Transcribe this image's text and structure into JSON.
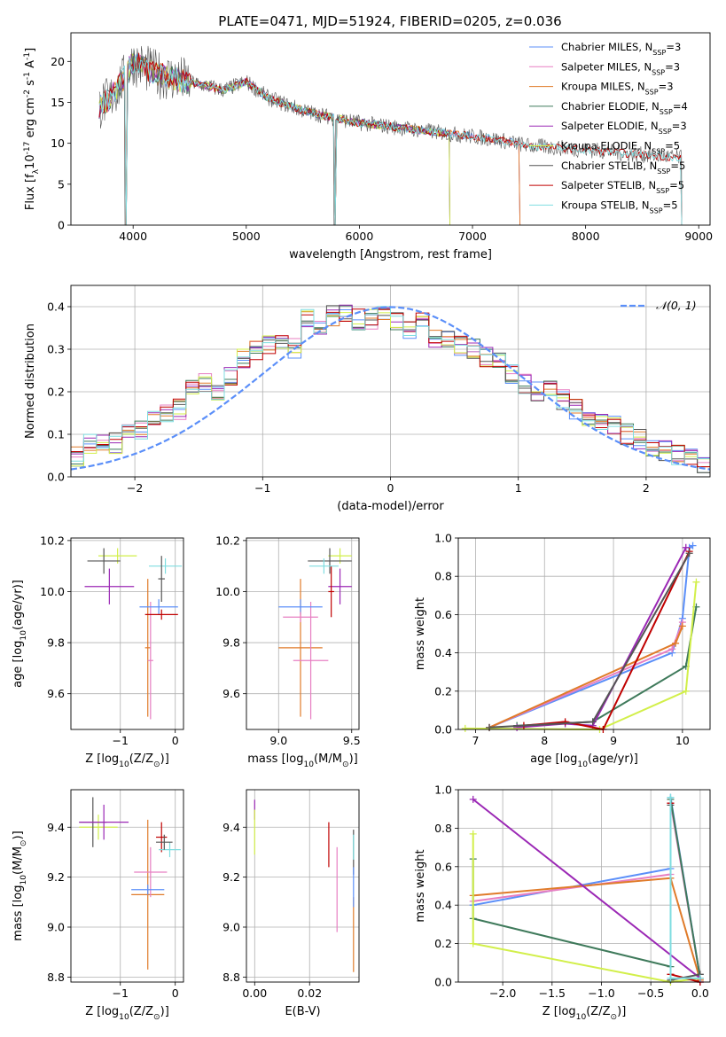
{
  "chart_data": [
    {
      "id": "spectrum",
      "type": "line",
      "title": "PLATE=0471, MJD=51924, FIBERID=0205, z=0.036",
      "xlabel": "wavelength [Angstrom, rest frame]",
      "ylabel": "Flux [f$_\\lambda$10$^{-17}$ erg cm$^{-2}$ s$^{-1}$ A$^{-1}$]",
      "xlim": [
        3450,
        9100
      ],
      "ylim": [
        0,
        23.5
      ],
      "xticks": [
        4000,
        5000,
        6000,
        7000,
        8000,
        9000
      ],
      "yticks": [
        0,
        5,
        10,
        15,
        20
      ],
      "legend_position": "top-right",
      "data": {
        "x": [
          3700,
          3800,
          3900,
          4000,
          4200,
          4500,
          4800,
          5000,
          5200,
          5500,
          5800,
          6000,
          6300,
          6600,
          6900,
          7200,
          7500,
          7800,
          8100,
          8400,
          8700,
          8850
        ],
        "y": [
          14.5,
          15.5,
          17.5,
          20,
          18.5,
          17.5,
          16.5,
          17.5,
          15.5,
          14,
          13,
          12.5,
          12,
          11.5,
          11,
          10.5,
          9.7,
          9.4,
          9.1,
          8.7,
          8.4,
          8.2
        ]
      },
      "series": [
        {
          "name": "Chabrier MILES, N$_{SSP}$=3",
          "color": "#5b8ff9",
          "end": 7420
        },
        {
          "name": "Salpeter MILES, N$_{SSP}$=3",
          "color": "#e77fc2",
          "end": 7420
        },
        {
          "name": "Kroupa MILES, N$_{SSP}$=3",
          "color": "#e07b2a",
          "end": 7420
        },
        {
          "name": "Chabrier ELODIE, N$_{SSP}$=4",
          "color": "#3f7a5b",
          "end": 6800
        },
        {
          "name": "Salpeter ELODIE, N$_{SSP}$=3",
          "color": "#9b28b5",
          "end": 6800
        },
        {
          "name": "Kroupa ELODIE, N$_{SSP}$=5",
          "color": "#d2ef4a",
          "end": 6800
        },
        {
          "name": "Chabrier STELIB, N$_{SSP}$=5",
          "color": "#555555",
          "end": 8850
        },
        {
          "name": "Salpeter STELIB, N$_{SSP}$=5",
          "color": "#c00000",
          "end": 8850
        },
        {
          "name": "Kroupa STELIB, N$_{SSP}$=5",
          "color": "#7fdde0",
          "end": 8850
        }
      ]
    },
    {
      "id": "residuals",
      "type": "bar",
      "xlabel": "(data-model)/error",
      "ylabel": "Normed distribution",
      "xlim": [
        -2.5,
        2.5
      ],
      "ylim": [
        0,
        0.45
      ],
      "xticks": [
        -2,
        -1,
        0,
        1,
        2
      ],
      "yticks": [
        0.0,
        0.1,
        0.2,
        0.3,
        0.4
      ],
      "legend": "$\\mathcal{N}(0,1)$",
      "legend_position": "top-right",
      "bins_start": -2.5,
      "bin_width": 0.1,
      "approx_heights": [
        0.05,
        0.08,
        0.08,
        0.08,
        0.1,
        0.11,
        0.13,
        0.15,
        0.16,
        0.21,
        0.22,
        0.2,
        0.24,
        0.28,
        0.3,
        0.31,
        0.31,
        0.3,
        0.37,
        0.35,
        0.38,
        0.39,
        0.37,
        0.37,
        0.38,
        0.37,
        0.35,
        0.37,
        0.32,
        0.33,
        0.31,
        0.3,
        0.28,
        0.27,
        0.24,
        0.22,
        0.2,
        0.2,
        0.18,
        0.16,
        0.14,
        0.13,
        0.12,
        0.1,
        0.09,
        0.07,
        0.06,
        0.05,
        0.04,
        0.03
      ]
    },
    {
      "id": "age-vs-Z",
      "type": "scatter",
      "xlabel": "Z [log$_{10}$(Z/Z$_\\odot$)]",
      "ylabel": "age  [log$_{10}$(age/yr)]",
      "xlim": [
        -1.9,
        0.15
      ],
      "ylim": [
        9.46,
        10.21
      ],
      "xticks": [
        -1,
        0
      ],
      "yticks": [
        9.6,
        9.8,
        10.0,
        10.2
      ],
      "points": [
        {
          "x": -1.05,
          "y": 10.14,
          "xe": 0.35,
          "ye": 0.03,
          "color": "#d2ef4a"
        },
        {
          "x": -1.3,
          "y": 10.12,
          "xe": 0.3,
          "ye": 0.05,
          "color": "#555555"
        },
        {
          "x": -1.2,
          "y": 10.02,
          "xe": 0.45,
          "ye": 0.07,
          "color": "#9b28b5"
        },
        {
          "x": -0.5,
          "y": 9.78,
          "xe": 0.05,
          "ye": 0.27,
          "color": "#e07b2a"
        },
        {
          "x": -0.45,
          "y": 9.73,
          "xe": 0.05,
          "ye": 0.23,
          "color": "#e77fc2"
        },
        {
          "x": -0.3,
          "y": 9.94,
          "xe": 0.35,
          "ye": 0.03,
          "color": "#5b8ff9"
        },
        {
          "x": -0.25,
          "y": 9.91,
          "xe": 0.3,
          "ye": 0.02,
          "color": "#c00000"
        },
        {
          "x": -0.18,
          "y": 10.1,
          "xe": 0.3,
          "ye": 0.03,
          "color": "#7fdde0"
        },
        {
          "x": -0.25,
          "y": 10.05,
          "xe": 0.06,
          "ye": 0.09,
          "color": "#555555"
        }
      ]
    },
    {
      "id": "age-vs-mass",
      "type": "scatter",
      "xlabel": "mass [log$_{10}$(M/M$_\\odot$)]",
      "ylabel": "",
      "xlim": [
        8.78,
        9.55
      ],
      "ylim": [
        9.46,
        10.21
      ],
      "xticks": [
        9.0,
        9.5
      ],
      "yticks": [
        9.6,
        9.8,
        10.0,
        10.2
      ],
      "points": [
        {
          "x": 9.42,
          "y": 10.14,
          "xe": 0.08,
          "ye": 0.03,
          "color": "#d2ef4a"
        },
        {
          "x": 9.35,
          "y": 10.12,
          "xe": 0.15,
          "ye": 0.05,
          "color": "#555555"
        },
        {
          "x": 9.42,
          "y": 10.02,
          "xe": 0.08,
          "ye": 0.07,
          "color": "#9b28b5"
        },
        {
          "x": 9.15,
          "y": 9.78,
          "xe": 0.15,
          "ye": 0.27,
          "color": "#e07b2a"
        },
        {
          "x": 9.22,
          "y": 9.73,
          "xe": 0.12,
          "ye": 0.23,
          "color": "#e77fc2"
        },
        {
          "x": 9.15,
          "y": 9.94,
          "xe": 0.15,
          "ye": 0.03,
          "color": "#5b8ff9"
        },
        {
          "x": 9.36,
          "y": 10.0,
          "xe": 0.02,
          "ye": 0.1,
          "color": "#c00000"
        },
        {
          "x": 9.31,
          "y": 10.1,
          "xe": 0.1,
          "ye": 0.03,
          "color": "#7fdde0"
        },
        {
          "x": 9.15,
          "y": 9.9,
          "xe": 0.12,
          "ye": 0.02,
          "color": "#e77fc2"
        }
      ]
    },
    {
      "id": "weight-vs-age",
      "type": "line",
      "xlabel": "age  [log$_{10}$(age/yr)]",
      "ylabel": "mass weight",
      "xlim": [
        6.75,
        10.4
      ],
      "ylim": [
        0.0,
        1.0
      ],
      "xticks": [
        7,
        8,
        9,
        10
      ],
      "yticks": [
        0.0,
        0.2,
        0.4,
        0.6,
        0.8,
        1.0
      ],
      "series": [
        {
          "color": "#5b8ff9",
          "x": [
            7.2,
            9.85,
            10.0,
            10.1,
            10.15
          ],
          "y": [
            0.01,
            0.4,
            0.58,
            0.95,
            0.96
          ]
        },
        {
          "color": "#e77fc2",
          "x": [
            7.2,
            9.85,
            10.0
          ],
          "y": [
            0.01,
            0.42,
            0.56
          ]
        },
        {
          "color": "#e07b2a",
          "x": [
            7.2,
            9.9,
            10.0
          ],
          "y": [
            0.01,
            0.45,
            0.54
          ]
        },
        {
          "color": "#3f7a5b",
          "x": [
            7.6,
            8.7,
            10.05,
            10.2
          ],
          "y": [
            0.02,
            0.04,
            0.33,
            0.64
          ]
        },
        {
          "color": "#9b28b5",
          "x": [
            7.6,
            8.3,
            8.7,
            10.05
          ],
          "y": [
            0.01,
            0.03,
            0.02,
            0.95
          ]
        },
        {
          "color": "#d2ef4a",
          "x": [
            6.85,
            8.8,
            10.05,
            10.2
          ],
          "y": [
            0.005,
            0.0,
            0.2,
            0.77
          ]
        },
        {
          "color": "#c00000",
          "x": [
            7.7,
            8.3,
            8.85,
            10.1
          ],
          "y": [
            0.02,
            0.04,
            0.0,
            0.93
          ]
        },
        {
          "color": "#555555",
          "x": [
            7.2,
            8.7,
            10.1
          ],
          "y": [
            0.01,
            0.04,
            0.92
          ]
        }
      ]
    },
    {
      "id": "mass-vs-Z",
      "type": "scatter",
      "xlabel": "Z [log$_{10}$(Z/Z$_\\odot$)]",
      "ylabel": "mass [log$_{10}$(M/M$_\\odot$)]",
      "xlim": [
        -1.9,
        0.15
      ],
      "ylim": [
        8.78,
        9.55
      ],
      "xticks": [
        -1,
        0
      ],
      "yticks": [
        8.8,
        9.0,
        9.2,
        9.4
      ],
      "points": [
        {
          "x": -1.4,
          "y": 9.4,
          "xe": 0.35,
          "ye": 0.05,
          "color": "#d2ef4a"
        },
        {
          "x": -1.5,
          "y": 9.42,
          "xe": 0.25,
          "ye": 0.1,
          "color": "#555555"
        },
        {
          "x": -1.3,
          "y": 9.42,
          "xe": 0.45,
          "ye": 0.07,
          "color": "#9b28b5"
        },
        {
          "x": -0.5,
          "y": 9.13,
          "xe": 0.3,
          "ye": 0.3,
          "color": "#e07b2a"
        },
        {
          "x": -0.45,
          "y": 9.22,
          "xe": 0.3,
          "ye": 0.1,
          "color": "#e77fc2"
        },
        {
          "x": -0.5,
          "y": 9.15,
          "xe": 0.3,
          "ye": 0.02,
          "color": "#5b8ff9"
        },
        {
          "x": -0.25,
          "y": 9.36,
          "xe": 0.1,
          "ye": 0.06,
          "color": "#c00000"
        },
        {
          "x": -0.1,
          "y": 9.31,
          "xe": 0.2,
          "ye": 0.03,
          "color": "#7fdde0"
        },
        {
          "x": -0.2,
          "y": 9.34,
          "xe": 0.15,
          "ye": 0.03,
          "color": "#555555"
        }
      ]
    },
    {
      "id": "mass-vs-ebv",
      "type": "scatter",
      "xlabel": "E(B-V)",
      "ylabel": "",
      "xlim": [
        -0.003,
        0.038
      ],
      "ylim": [
        8.78,
        9.55
      ],
      "xticks": [
        0.0,
        0.02
      ],
      "yticks": [
        8.8,
        9.0,
        9.2,
        9.4
      ],
      "points": [
        {
          "x": 0.0,
          "y": 9.47,
          "xe": 0.0,
          "ye": 0.04,
          "color": "#9b28b5"
        },
        {
          "x": 0.0,
          "y": 9.38,
          "xe": 0.0,
          "ye": 0.09,
          "color": "#d2ef4a"
        },
        {
          "x": 0.027,
          "y": 9.33,
          "xe": 0.0,
          "ye": 0.09,
          "color": "#c00000"
        },
        {
          "x": 0.03,
          "y": 9.15,
          "xe": 0.0,
          "ye": 0.17,
          "color": "#e77fc2"
        },
        {
          "x": 0.036,
          "y": 9.3,
          "xe": 0.0,
          "ye": 0.09,
          "color": "#555555"
        },
        {
          "x": 0.036,
          "y": 9.32,
          "xe": 0.0,
          "ye": 0.05,
          "color": "#7fdde0"
        },
        {
          "x": 0.036,
          "y": 8.97,
          "xe": 0.0,
          "ye": 0.15,
          "color": "#e07b2a"
        },
        {
          "x": 0.036,
          "y": 9.16,
          "xe": 0.0,
          "ye": 0.08,
          "color": "#5b8ff9"
        }
      ]
    },
    {
      "id": "weight-vs-Z",
      "type": "line",
      "xlabel": "Z [log$_{10}$(Z/Z$_\\odot$)]",
      "ylabel": "mass weight",
      "xlim": [
        -2.45,
        0.1
      ],
      "ylim": [
        0.0,
        1.0
      ],
      "xticks": [
        -2.0,
        -1.5,
        -1.0,
        -0.5,
        0.0
      ],
      "yticks": [
        0.0,
        0.2,
        0.4,
        0.6,
        0.8,
        1.0
      ],
      "series": [
        {
          "color": "#5b8ff9",
          "x": [
            -2.3,
            -0.3,
            -0.3,
            0.0
          ],
          "y": [
            0.4,
            0.59,
            0.96,
            0.02
          ]
        },
        {
          "color": "#e77fc2",
          "x": [
            -2.3,
            -0.3,
            -0.3,
            0.0
          ],
          "y": [
            0.42,
            0.56,
            0.93,
            0.02
          ]
        },
        {
          "color": "#e07b2a",
          "x": [
            -2.3,
            -0.3,
            0.0
          ],
          "y": [
            0.45,
            0.54,
            0.01
          ]
        },
        {
          "color": "#3f7a5b",
          "x": [
            -2.3,
            -2.3,
            -0.3,
            -0.3,
            0.0
          ],
          "y": [
            0.64,
            0.33,
            0.08,
            0.95,
            0.02
          ]
        },
        {
          "color": "#9b28b5",
          "x": [
            -2.3,
            0.0,
            0.0
          ],
          "y": [
            0.95,
            0.02,
            0.0
          ]
        },
        {
          "color": "#d2ef4a",
          "x": [
            -2.3,
            -2.3,
            -0.3,
            0.0
          ],
          "y": [
            0.77,
            0.2,
            0.0,
            0.02
          ]
        },
        {
          "color": "#c00000",
          "x": [
            -0.3,
            -0.3,
            0.0
          ],
          "y": [
            0.93,
            0.04,
            0.0
          ]
        },
        {
          "color": "#555555",
          "x": [
            -0.3,
            -0.3,
            0.0
          ],
          "y": [
            0.92,
            0.01,
            0.04
          ]
        },
        {
          "color": "#7fdde0",
          "x": [
            -0.3,
            -0.3,
            0.0
          ],
          "y": [
            0.96,
            0.02,
            0.02
          ]
        }
      ]
    }
  ]
}
